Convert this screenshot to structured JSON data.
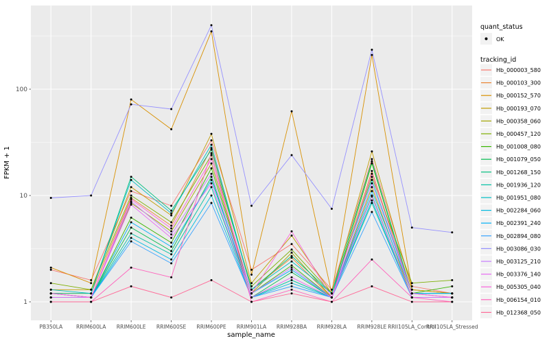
{
  "figure": {
    "background": "#FFFFFF",
    "panel_background": "#EBEBEB",
    "grid_color": "#FFFFFF",
    "tick_color": "#333333",
    "axis_text_color": "#4D4D4D",
    "point_color": "#000000"
  },
  "chart_data": {
    "type": "line",
    "title": "",
    "xlabel": "sample_name",
    "ylabel": "FPKM + 1",
    "y_scale": "log10",
    "y_ticks": [
      1,
      10,
      100
    ],
    "y_tick_labels": [
      "1",
      "10",
      "100"
    ],
    "ylim": [
      0.67,
      600
    ],
    "grid": true,
    "categories": [
      "PB350LA",
      "RRIM600LA",
      "RRIM600LE",
      "RRIM600SE",
      "RRIM600PE",
      "RRIM901LA",
      "RRIM928BA",
      "RRIM928LA",
      "RRIM928LE",
      "RRII105LA_Control",
      "RRII105LA_Stressed"
    ],
    "legend": {
      "position": "right",
      "quant_status_title": "quant_status",
      "quant_status_items": [
        {
          "label": "OK",
          "glyph": "point",
          "color": "#000000"
        }
      ],
      "tracking_id_title": "tracking_id",
      "key_fill": "#F2F2F2"
    },
    "series": [
      {
        "name": "Hb_000003_580",
        "color": "#F8766D",
        "values": [
          2.0,
          1.6,
          11,
          8,
          33,
          2.0,
          3.5,
          1.3,
          22,
          1.4,
          1.2
        ]
      },
      {
        "name": "Hb_000103_300",
        "color": "#EA8331",
        "values": [
          1.2,
          1.2,
          9.5,
          5.2,
          28,
          1.3,
          2.6,
          1.1,
          17,
          1.2,
          1.1
        ]
      },
      {
        "name": "Hb_000152_570",
        "color": "#D89000",
        "values": [
          2.1,
          1.5,
          80,
          42,
          350,
          1.8,
          62,
          1.2,
          210,
          1.3,
          1.2
        ]
      },
      {
        "name": "Hb_000193_070",
        "color": "#C09B00",
        "values": [
          1.3,
          1.3,
          12,
          6.5,
          38,
          1.5,
          4.2,
          1.2,
          26,
          1.3,
          1.2
        ]
      },
      {
        "name": "Hb_000358_060",
        "color": "#A3A500",
        "values": [
          1.1,
          1.1,
          8.5,
          4.6,
          20,
          1.2,
          2.9,
          1.1,
          12,
          1.1,
          1.1
        ]
      },
      {
        "name": "Hb_000457_120",
        "color": "#7CAE00",
        "values": [
          1.5,
          1.3,
          10,
          5.6,
          24,
          1.4,
          3.1,
          1.2,
          15,
          1.5,
          1.6
        ]
      },
      {
        "name": "Hb_001008_080",
        "color": "#39B600",
        "values": [
          1.2,
          1.1,
          6.2,
          3.6,
          18,
          1.2,
          2.2,
          1.1,
          20,
          1.2,
          1.4
        ]
      },
      {
        "name": "Hb_001079_050",
        "color": "#00BB4E",
        "values": [
          1.1,
          1.1,
          5.0,
          3.0,
          15,
          1.1,
          1.9,
          1.1,
          10,
          1.1,
          1.1
        ]
      },
      {
        "name": "Hb_001268_150",
        "color": "#00BF7D",
        "values": [
          1.2,
          1.2,
          15,
          7.2,
          27,
          1.3,
          2.7,
          1.2,
          21,
          1.2,
          1.2
        ]
      },
      {
        "name": "Hb_001936_120",
        "color": "#00C1A3",
        "values": [
          1.1,
          1.1,
          4.4,
          2.8,
          12,
          1.1,
          1.6,
          1.1,
          8.5,
          1.1,
          1.1
        ]
      },
      {
        "name": "Hb_001951_080",
        "color": "#00BFC4",
        "values": [
          1.3,
          1.2,
          14,
          6.8,
          30,
          1.3,
          2.4,
          1.2,
          14,
          1.2,
          1.2
        ]
      },
      {
        "name": "Hb_002284_060",
        "color": "#00BAE0",
        "values": [
          1.1,
          1.1,
          4.0,
          2.5,
          10,
          1.1,
          1.5,
          1.1,
          9,
          1.1,
          1.1
        ]
      },
      {
        "name": "Hb_002391_240",
        "color": "#00B0F6",
        "values": [
          1.2,
          1.1,
          5.6,
          3.3,
          14,
          1.2,
          2.0,
          1.1,
          11,
          1.2,
          1.2
        ]
      },
      {
        "name": "Hb_002894_080",
        "color": "#35A2FF",
        "values": [
          1.1,
          1.1,
          3.7,
          2.3,
          8.5,
          1.1,
          1.4,
          1.1,
          7,
          1.1,
          1.1
        ]
      },
      {
        "name": "Hb_003086_030",
        "color": "#9590FF",
        "values": [
          9.5,
          10,
          72,
          65,
          400,
          8,
          24,
          7.5,
          235,
          5,
          4.5
        ]
      },
      {
        "name": "Hb_003125_210",
        "color": "#C77CFF",
        "values": [
          1.2,
          1.1,
          8.8,
          4.3,
          16,
          1.2,
          2.1,
          1.1,
          13,
          1.2,
          1.1
        ]
      },
      {
        "name": "Hb_003376_140",
        "color": "#E76BF3",
        "values": [
          1.1,
          1.1,
          8.2,
          4.0,
          13,
          1.1,
          1.7,
          1.1,
          9.8,
          1.1,
          1.1
        ]
      },
      {
        "name": "Hb_005305_040",
        "color": "#FA62DB",
        "values": [
          1.2,
          1.1,
          9.2,
          4.9,
          22,
          1.2,
          4.6,
          1.1,
          16,
          1.2,
          1.1
        ]
      },
      {
        "name": "Hb_006154_010",
        "color": "#FF62BC",
        "values": [
          1.0,
          1.0,
          2.1,
          1.7,
          25,
          1.0,
          1.3,
          1.0,
          2.5,
          1.1,
          1.0
        ]
      },
      {
        "name": "Hb_012368_050",
        "color": "#FF6A98",
        "values": [
          1.0,
          1.0,
          1.4,
          1.1,
          1.6,
          1.0,
          1.2,
          1.0,
          1.4,
          1.0,
          1.0
        ]
      }
    ]
  }
}
